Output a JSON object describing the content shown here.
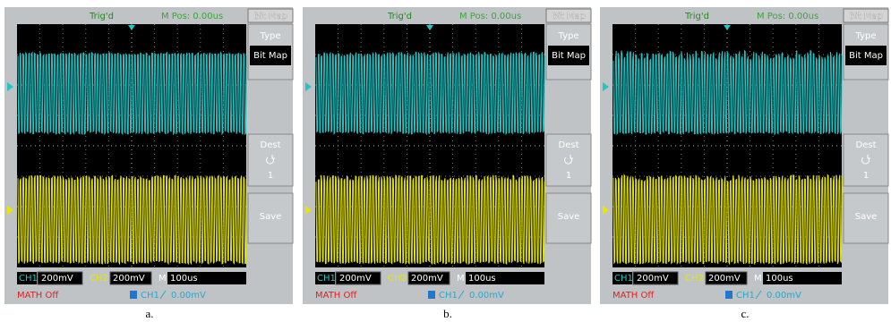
{
  "panels": [
    {
      "trigger_status": "Trig'd",
      "m_pos": "M Pos: 0.00us",
      "menu_title": "Bit Map",
      "menu": {
        "type_label": "Type",
        "type_value": "Bit Map",
        "dest_label": "Dest",
        "dest_value": "1",
        "save_label": "Save"
      },
      "status": {
        "ch1_label": "CH1",
        "ch1_scale": "200mV",
        "ch2_label": "CH2",
        "ch2_scale": "200mV",
        "m_label": "M",
        "m_time": "100us",
        "math": "MATH Off",
        "trig_channel": "CH1",
        "trig_level": "0.00mV"
      },
      "caption": "a."
    },
    {
      "trigger_status": "Trig'd",
      "m_pos": "M Pos: 0.00us",
      "menu_title": "Bit Map",
      "menu": {
        "type_label": "Type",
        "type_value": "Bit Map",
        "dest_label": "Dest",
        "dest_value": "1",
        "save_label": "Save"
      },
      "status": {
        "ch1_label": "CH1",
        "ch1_scale": "200mV",
        "ch2_label": "CH2",
        "ch2_scale": "200mV",
        "m_label": "M",
        "m_time": "100us",
        "math": "MATH Off",
        "trig_channel": "CH1",
        "trig_level": "0.00mV"
      },
      "caption": "b."
    },
    {
      "trigger_status": "Trig'd",
      "m_pos": "M Pos: 0.00us",
      "menu_title": "Bit Map",
      "menu": {
        "type_label": "Type",
        "type_value": "Bit Map",
        "dest_label": "Dest",
        "dest_value": "1",
        "save_label": "Save"
      },
      "status": {
        "ch1_label": "CH1",
        "ch1_scale": "200mV",
        "ch2_label": "CH2",
        "ch2_scale": "200mV",
        "m_label": "M",
        "m_time": "100us",
        "math": "MATH Off",
        "trig_channel": "CH1",
        "trig_level": "0.00mV"
      },
      "caption": "c."
    }
  ]
}
